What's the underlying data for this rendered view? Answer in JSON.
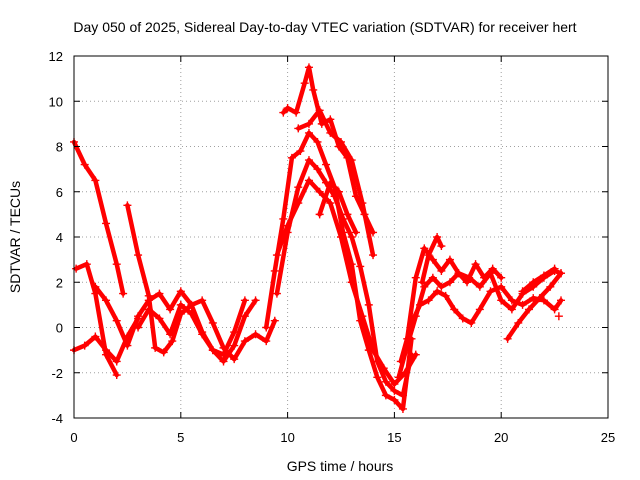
{
  "chart_data": {
    "type": "scatter",
    "title": "Day 050 of 2025, Sidereal Day-to-day VTEC variation (SDTVAR) for receiver hert",
    "xlabel": "GPS time / hours",
    "ylabel": "SDTVAR / TECUs",
    "xlim": [
      0,
      25
    ],
    "ylim": [
      -4,
      12
    ],
    "xticks": [
      "0",
      "5",
      "10",
      "15",
      "20",
      "25"
    ],
    "yticks": [
      "-4",
      "-2",
      "0",
      "2",
      "4",
      "6",
      "8",
      "10",
      "12"
    ],
    "grid": true,
    "marker": "+",
    "color": "#ff0000",
    "series": [
      {
        "x": [
          0.0,
          0.5,
          1.0,
          1.5,
          2.0,
          2.3
        ],
        "y": [
          8.2,
          7.2,
          6.5,
          4.6,
          2.8,
          1.5
        ]
      },
      {
        "x": [
          0.0,
          0.5,
          1.0,
          1.5,
          2.0,
          2.5,
          3.0
        ],
        "y": [
          -1.0,
          -0.8,
          -0.4,
          -1.0,
          -1.5,
          -0.4,
          0.4
        ]
      },
      {
        "x": [
          0.1,
          0.6,
          1.0,
          1.5,
          2.0
        ],
        "y": [
          2.6,
          2.8,
          1.5,
          -1.2,
          -2.1
        ]
      },
      {
        "x": [
          1.0,
          1.5,
          2.0,
          2.5,
          3.0,
          3.5,
          4.0,
          4.5,
          5.0,
          5.5,
          6.0,
          6.5,
          7.0,
          7.5,
          8.0,
          8.5,
          9.0,
          9.4
        ],
        "y": [
          1.8,
          1.2,
          0.3,
          -0.8,
          0.5,
          1.2,
          1.5,
          0.8,
          1.6,
          1.0,
          1.2,
          0.2,
          -0.9,
          -1.4,
          -0.6,
          -0.3,
          -0.6,
          0.3
        ]
      },
      {
        "x": [
          2.5,
          3.0,
          3.5,
          3.8,
          4.2,
          4.6,
          5.0,
          5.5,
          6.0,
          6.5,
          7.0,
          7.5,
          8.0
        ],
        "y": [
          5.4,
          3.2,
          1.4,
          -0.9,
          -1.1,
          -0.6,
          0.6,
          1.0,
          -0.2,
          -1.0,
          -1.2,
          -0.2,
          1.2
        ]
      },
      {
        "x": [
          3.0,
          3.5,
          4.0,
          4.5,
          5.0,
          5.5,
          6.0,
          6.5,
          7.0,
          7.5,
          8.0,
          8.5
        ],
        "y": [
          0.0,
          0.8,
          0.4,
          -0.3,
          1.0,
          0.6,
          -0.3,
          -1.0,
          -1.5,
          -0.8,
          0.5,
          1.2
        ]
      },
      {
        "x": [
          9.0,
          9.4,
          9.8,
          10.2,
          10.6,
          11.0,
          11.4,
          11.8,
          12.2,
          12.6,
          13.0,
          13.4,
          13.8,
          14.2,
          14.6,
          15.0,
          15.4,
          15.8
        ],
        "y": [
          0.0,
          2.5,
          4.8,
          7.5,
          7.8,
          8.6,
          8.2,
          7.2,
          6.2,
          4.2,
          2.8,
          0.3,
          -1.0,
          -2.2,
          -3.0,
          -3.2,
          -3.6,
          -0.5
        ]
      },
      {
        "x": [
          9.5,
          10.0,
          10.5,
          11.0,
          11.4,
          11.8,
          12.2,
          12.6,
          13.0,
          13.4,
          13.8,
          14.2,
          14.6,
          15.0,
          15.4,
          15.8
        ],
        "y": [
          1.5,
          4.2,
          6.2,
          7.4,
          7.0,
          6.4,
          5.8,
          4.8,
          4.0,
          2.7,
          1.0,
          -1.5,
          -2.4,
          -2.8,
          -3.0,
          -1.2
        ]
      },
      {
        "x": [
          9.5,
          10.0,
          10.5,
          11.0,
          11.5,
          12.0,
          12.5,
          13.0,
          13.5,
          14.0,
          14.5,
          15.0,
          15.5,
          16.0
        ],
        "y": [
          3.2,
          4.5,
          5.5,
          6.5,
          6.0,
          5.5,
          4.0,
          2.0,
          0.5,
          -1.0,
          -1.8,
          -2.5,
          -2.0,
          -1.2
        ]
      },
      {
        "x": [
          9.8,
          10.0,
          10.4,
          10.8,
          11.0,
          11.2,
          11.6,
          12.0,
          12.4,
          12.8,
          13.2,
          13.6,
          14.0
        ],
        "y": [
          9.5,
          9.7,
          9.5,
          10.8,
          11.5,
          10.5,
          9.0,
          9.2,
          8.0,
          7.5,
          5.8,
          5.0,
          4.2
        ]
      },
      {
        "x": [
          10.5,
          11.0,
          11.5,
          12.0,
          12.5,
          13.0,
          13.5,
          14.0
        ],
        "y": [
          8.8,
          9.0,
          9.6,
          8.6,
          8.2,
          7.4,
          5.5,
          3.2
        ]
      },
      {
        "x": [
          11.5,
          12.0,
          12.4,
          12.8,
          13.2
        ],
        "y": [
          5.0,
          6.4,
          6.0,
          5.0,
          4.2
        ]
      },
      {
        "x": [
          15.2,
          15.6,
          16.0,
          16.4,
          16.8,
          17.2,
          17.6,
          18.0,
          18.5,
          19.0,
          19.5,
          20.0,
          20.5,
          21.0,
          21.5,
          22.0,
          22.5,
          22.8
        ],
        "y": [
          -2.2,
          -0.8,
          0.5,
          1.8,
          2.2,
          1.8,
          2.0,
          2.4,
          2.2,
          1.8,
          2.4,
          1.2,
          0.8,
          1.5,
          1.8,
          2.2,
          2.5,
          2.4
        ]
      },
      {
        "x": [
          15.3,
          15.8,
          16.2,
          16.6,
          17.0,
          17.4,
          17.8,
          18.2,
          18.6,
          19.0,
          19.5,
          20.0,
          20.5,
          21.0,
          21.5,
          22.0,
          22.5,
          22.8
        ],
        "y": [
          -1.5,
          0.2,
          1.0,
          1.2,
          1.6,
          1.4,
          0.8,
          0.4,
          0.2,
          0.8,
          1.6,
          1.8,
          1.2,
          1.0,
          1.3,
          1.2,
          0.8,
          1.2
        ]
      },
      {
        "x": [
          15.6,
          16.0,
          16.4,
          16.8,
          17.2,
          17.6,
          18.0,
          18.4,
          18.8,
          19.2,
          19.6,
          20.0
        ],
        "y": [
          -0.5,
          2.2,
          3.5,
          3.0,
          2.5,
          3.0,
          2.4,
          2.0,
          2.8,
          2.2,
          2.6,
          2.2
        ]
      },
      {
        "x": [
          16.3,
          16.6,
          17.0,
          17.2
        ],
        "y": [
          2.0,
          3.2,
          4.0,
          3.6
        ]
      },
      {
        "x": [
          20.3,
          20.8,
          21.3,
          21.8,
          22.3,
          22.8
        ],
        "y": [
          -0.5,
          0.2,
          0.8,
          1.3,
          1.8,
          2.4
        ]
      },
      {
        "x": [
          21.0,
          21.5,
          22.0,
          22.5
        ],
        "y": [
          1.6,
          2.0,
          2.3,
          2.6
        ]
      },
      {
        "x": [
          22.7
        ],
        "y": [
          0.5
        ]
      }
    ]
  }
}
